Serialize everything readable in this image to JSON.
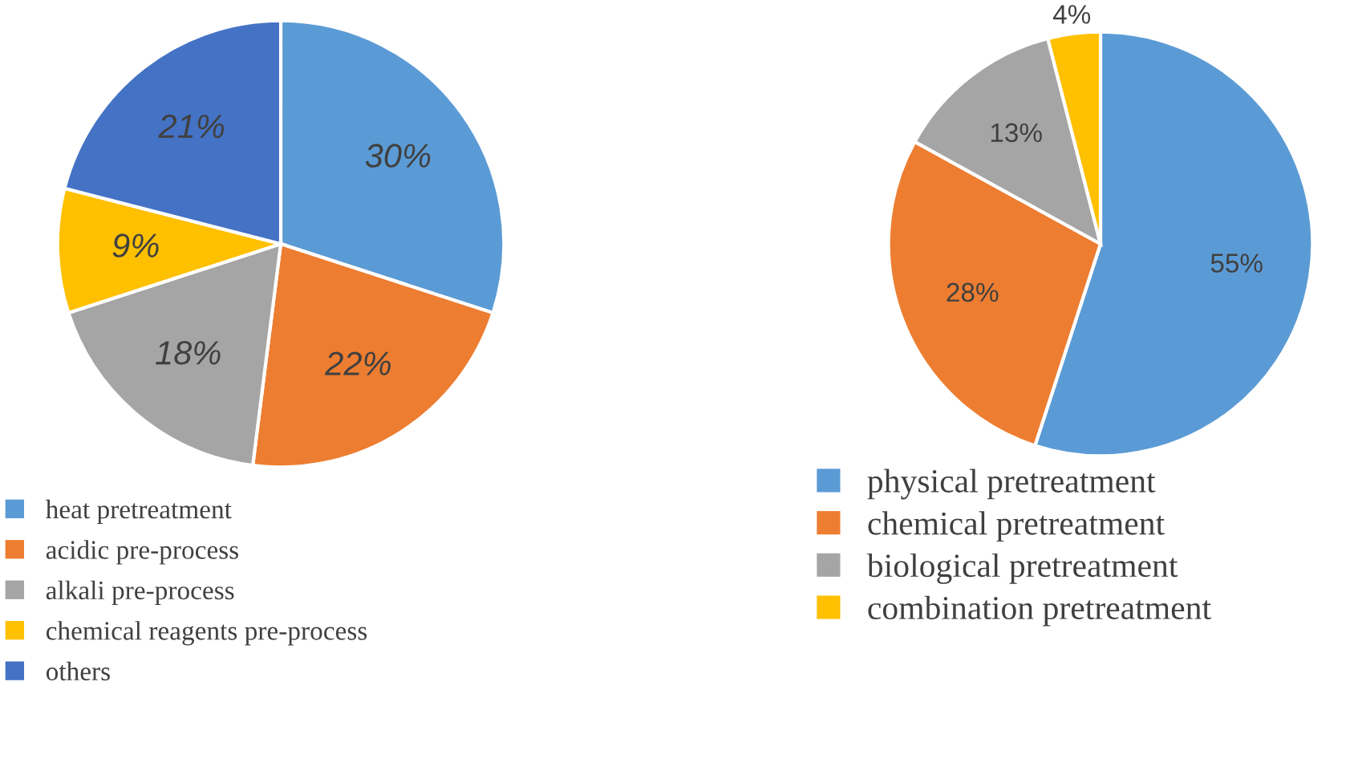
{
  "chart_data": [
    {
      "type": "pie",
      "categories": [
        "heat pretreatment",
        "acidic pre-process",
        "alkali pre-process",
        "chemical reagents pre-process",
        "others"
      ],
      "values": [
        30,
        22,
        18,
        9,
        21
      ],
      "value_labels": [
        "30%",
        "22%",
        "18%",
        "9%",
        "21%"
      ],
      "data_labels": true,
      "colors": [
        "#5b9bd5",
        "#ed7d31",
        "#a5a5a5",
        "#ffc000",
        "#4472c4"
      ],
      "legend": "bottom"
    },
    {
      "type": "pie",
      "categories": [
        "physical pretreatment",
        "chemical pretreatment",
        "biological pretreatment",
        "combination pretreatment"
      ],
      "values": [
        55,
        28,
        13,
        4
      ],
      "value_labels": [
        "55%",
        "28%",
        "13%",
        "4%"
      ],
      "data_labels": true,
      "colors": [
        "#5b9bd5",
        "#ed7d31",
        "#a5a5a5",
        "#ffc000"
      ],
      "legend": "bottom"
    }
  ]
}
